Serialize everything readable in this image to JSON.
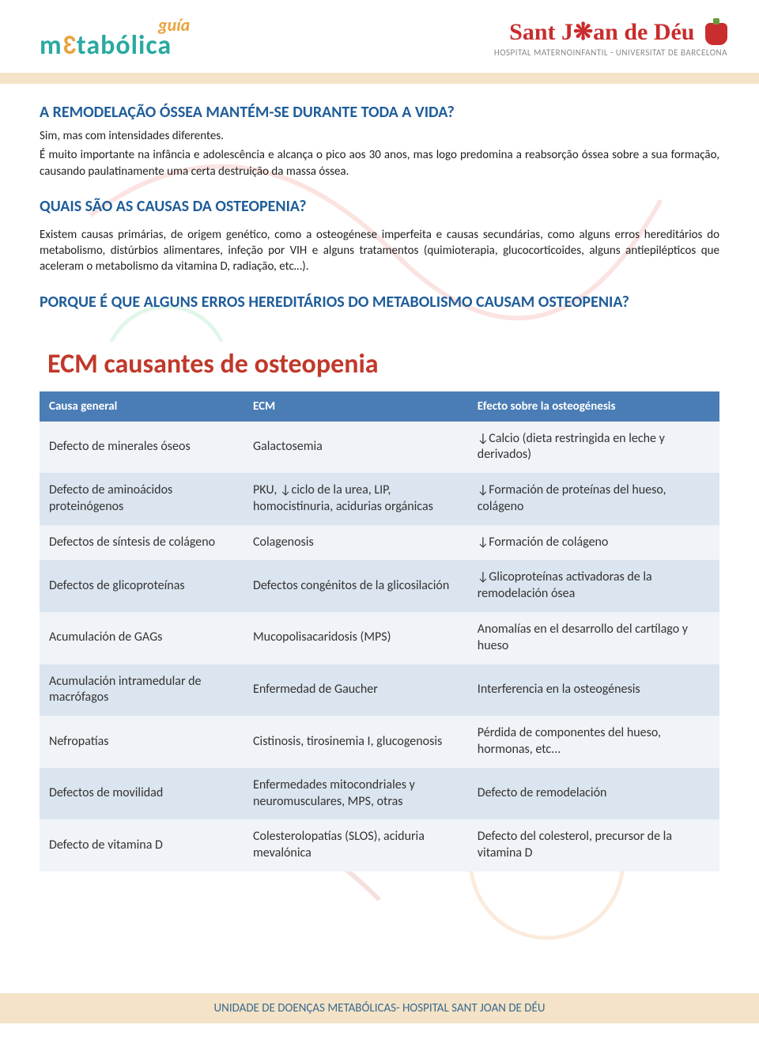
{
  "header": {
    "logo_left_top": "guía",
    "logo_left_main_pre": "m",
    "logo_left_main_e": "3",
    "logo_left_main_post": "tabólica",
    "logo_right_main": "Sant J❋an de Déu",
    "logo_right_sub": "HOSPITAL MATERNOINFANTIL - UNIVERSITAT DE BARCELONA"
  },
  "colors": {
    "heading_blue": "#1f5d9a",
    "table_title_red": "#c0392b",
    "table_header_bg": "#4a7db5",
    "row_odd_bg": "#f0f3f7",
    "row_even_bg": "#dbe5ef",
    "beige_bar": "#f4e3c7",
    "teal": "#2aa9a0",
    "orange": "#e8a33d"
  },
  "sections": {
    "s1_title": "A REMODELAÇÃO ÓSSEA MANTÉM-SE DURANTE TODA A VIDA?",
    "s1_p1": "Sim, mas com intensidades diferentes.",
    "s1_p2": "É muito importante na infância e adolescência e alcança o pico aos 30 anos, mas logo predomina a reabsorção óssea sobre a sua formação, causando paulatinamente uma certa destruição da massa óssea.",
    "s2_title": "QUAIS SÃO AS CAUSAS DA OSTEOPENIA?",
    "s2_p1": "Existem causas primárias, de origem genético, como a osteogénese imperfeita e causas secundárias, como alguns erros hereditários do metabolismo, distúrbios alimentares, infeção por VIH e alguns tratamentos (quimioterapia, glucocorticoides, alguns antiepilépticos que aceleram o metabolismo da vitamina D, radiação, etc…).",
    "s3_title": "PORQUE É QUE ALGUNS ERROS HEREDITÁRIOS DO METABOLISMO CAUSAM OSTEOPENIA?"
  },
  "table": {
    "title": "ECM causantes de osteopenia",
    "columns": [
      "Causa general",
      "ECM",
      "Efecto sobre la osteogénesis"
    ],
    "rows": [
      [
        "Defecto de minerales óseos",
        "Galactosemia",
        "↓Calcio (dieta restringida en leche y derivados)"
      ],
      [
        "Defecto de aminoácidos proteinógenos",
        "PKU, ↓ciclo de la urea, LIP, homocistinuria, acidurias orgánicas",
        "↓Formación de proteínas del hueso, colágeno"
      ],
      [
        "Defectos de síntesis de colágeno",
        "Colagenosis",
        "↓Formación de colágeno"
      ],
      [
        "Defectos de glicoproteínas",
        "Defectos congénitos de la glicosilación",
        "↓Glicoproteínas activadoras de la remodelación ósea"
      ],
      [
        "Acumulación de GAGs",
        "Mucopolisacaridosis (MPS)",
        "Anomalías en el desarrollo del cartílago y hueso"
      ],
      [
        "Acumulación intramedular de macrófagos",
        "Enfermedad de Gaucher",
        "Interferencia en la osteogénesis"
      ],
      [
        "Nefropatías",
        "Cistinosis, tirosinemia I, glucogenosis",
        "Pérdida de componentes del hueso, hormonas, etc..."
      ],
      [
        "Defectos de movilidad",
        "Enfermedades mitocondriales y neuromusculares, MPS, otras",
        "Defecto de remodelación"
      ],
      [
        "Defecto de vitamina D",
        "Colesterolopatías (SLOS), aciduria mevalónica",
        "Defecto del colesterol, precursor de la vitamina D"
      ]
    ]
  },
  "footer": {
    "text": "UNIDADE DE DOENÇAS METABÓLICAS- HOSPITAL SANT JOAN DE DÉU"
  }
}
